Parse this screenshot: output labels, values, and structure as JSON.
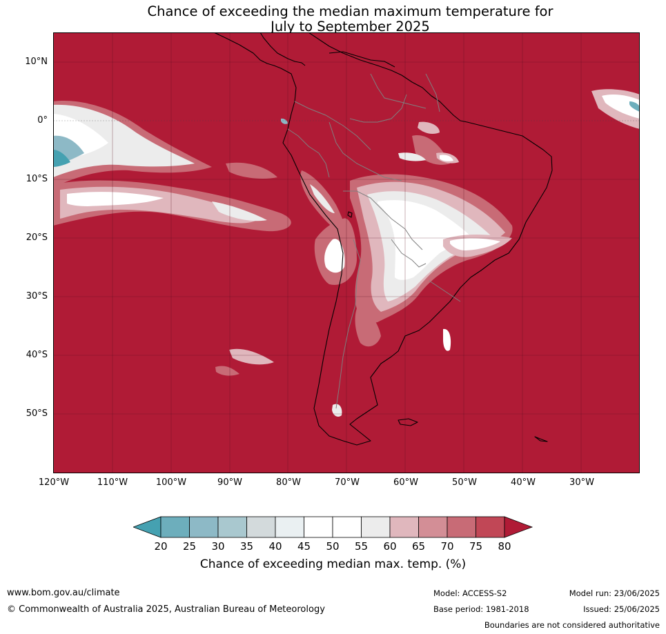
{
  "title": {
    "line1": "Chance of exceeding the median maximum temperature for",
    "line2": "July to September 2025"
  },
  "map": {
    "lat_labels": [
      "10°N",
      "0°",
      "10°S",
      "20°S",
      "30°S",
      "40°S",
      "50°S"
    ],
    "lon_labels": [
      "120°W",
      "110°W",
      "100°W",
      "90°W",
      "80°W",
      "70°W",
      "60°W",
      "50°W",
      "40°W",
      "30°W"
    ],
    "region": "South America",
    "dominant_color": "#b01b36"
  },
  "colorbar": {
    "ticks": [
      "20",
      "25",
      "30",
      "35",
      "40",
      "45",
      "50",
      "55",
      "60",
      "65",
      "70",
      "75",
      "80"
    ],
    "colors": [
      "#45a1b1",
      "#6daebc",
      "#8db9c6",
      "#a9c8cf",
      "#d3dadc",
      "#eaf0f2",
      "#ffffff",
      "#ffffff",
      "#ececec",
      "#e0b7bd",
      "#d38e96",
      "#c86b76",
      "#c14756",
      "#b01b36"
    ],
    "label": "Chance of exceeding median max. temp. (%)"
  },
  "footer": {
    "website": "www.bom.gov.au/climate",
    "copyright": "© Commonwealth of Australia 2025, Australian Bureau of Meteorology",
    "model": "Model: ACCESS-S2",
    "base_period": "Base period: 1981-2018",
    "model_run": "Model run: 23/06/2025",
    "issued": "Issued: 25/06/2025",
    "disclaimer": "Boundaries are not considered authoritative"
  }
}
